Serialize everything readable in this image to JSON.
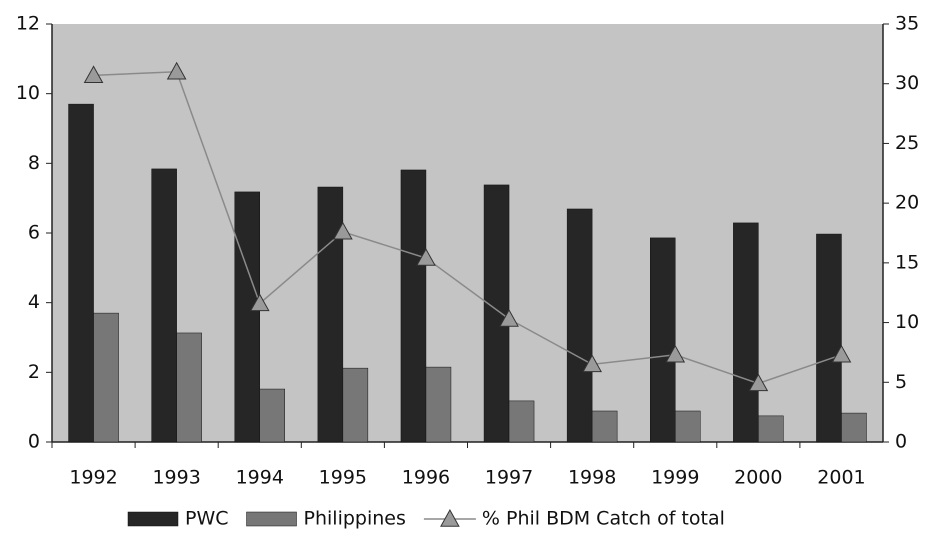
{
  "chart_data": {
    "type": "bar-line",
    "categories": [
      "1992",
      "1993",
      "1994",
      "1995",
      "1996",
      "1997",
      "1998",
      "1999",
      "2000",
      "2001"
    ],
    "series": [
      {
        "name": "PWC",
        "color": "#262626",
        "values": [
          9.7,
          7.84,
          7.18,
          7.32,
          7.81,
          7.38,
          6.69,
          5.86,
          6.29,
          5.97
        ]
      },
      {
        "name": "Philippines",
        "color": "#777777",
        "values": [
          3.7,
          3.13,
          1.52,
          2.12,
          2.15,
          1.18,
          0.89,
          0.89,
          0.75,
          0.83
        ]
      },
      {
        "name": "% Phil BDM Catch of total",
        "color": "#8a8a8a",
        "axis": "y2",
        "type": "line",
        "values": [
          30.7,
          31,
          11.6,
          17.6,
          15.4,
          10.3,
          6.5,
          7.3,
          4.9,
          7.3
        ]
      }
    ],
    "ylim": [
      0,
      12
    ],
    "yticks": [
      0,
      2,
      4,
      6,
      8,
      10,
      12
    ],
    "y2lim": [
      0,
      35
    ],
    "y2ticks": [
      0,
      5,
      10,
      15,
      20,
      25,
      30,
      35
    ],
    "legend": "bottom"
  }
}
